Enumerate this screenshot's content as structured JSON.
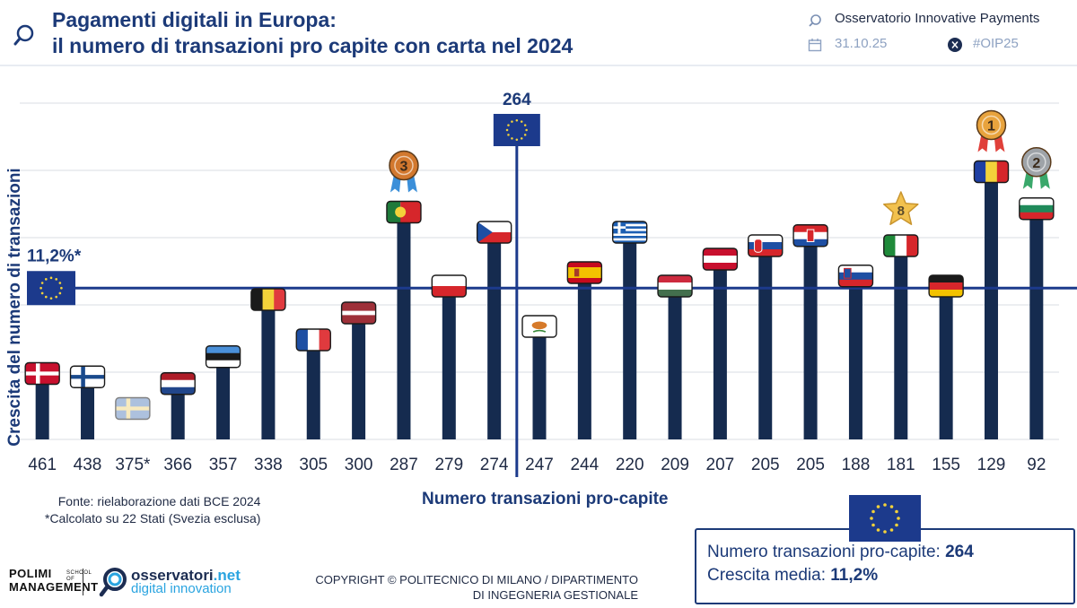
{
  "header": {
    "title_line1": "Pagamenti digitali in Europa:",
    "title_line2": "il numero di transazioni pro capite con carta nel 2024",
    "org": "Osservatorio Innovative Payments",
    "date": "31.10.25",
    "hashtag": "#OIP25"
  },
  "colors": {
    "bar": "#152b4f",
    "accent": "#1c3a8c",
    "gridline": "#d9dde3",
    "flag_blue": "#1c3a8c"
  },
  "chart_data": {
    "type": "bar",
    "title": "Pagamenti digitali in Europa: il numero di transazioni pro capite con carta nel 2024",
    "xlabel": "Numero transazioni pro-capite",
    "ylabel": "Crescita del numero di transazioni",
    "categories": [
      "461",
      "438",
      "375*",
      "366",
      "357",
      "338",
      "305",
      "300",
      "287",
      "279",
      "274",
      "247",
      "244",
      "220",
      "209",
      "207",
      "205",
      "205",
      "188",
      "181",
      "155",
      "129",
      "92"
    ],
    "countries": [
      "Denmark",
      "Finland",
      "Sweden",
      "Netherlands",
      "Estonia",
      "Belgium",
      "France",
      "Latvia",
      "Portugal",
      "Poland",
      "Czech Republic",
      "Cyprus",
      "Spain",
      "Greece",
      "Hungary",
      "Austria",
      "Slovakia",
      "Croatia",
      "Slovenia",
      "Italy",
      "Germany",
      "Romania",
      "Bulgaria"
    ],
    "values": [
      9,
      8.5,
      null,
      7.5,
      11.5,
      20,
      14,
      18,
      33,
      22,
      30,
      16,
      24,
      30,
      22,
      26,
      28,
      29.5,
      23.5,
      28,
      22,
      39,
      33.5
    ],
    "ylim": [
      0,
      50
    ],
    "reference_value_label": "264",
    "reference_growth_label": "11,2%*",
    "reference_growth": 22.5,
    "reference_between_indices": [
      10,
      11
    ],
    "medals": [
      {
        "index": 21,
        "label": "1",
        "color": "#e8a33d"
      },
      {
        "index": 22,
        "label": "2",
        "color": "#9ea3a8"
      },
      {
        "index": 8,
        "label": "3",
        "color": "#d2782e"
      },
      {
        "index": 19,
        "label": "8",
        "color": "#f2c14e"
      }
    ],
    "grid": true
  },
  "notes": {
    "source": "Fonte: rielaborazione dati BCE 2024",
    "footnote": "*Calcolato su 22 Stati (Svezia esclusa)"
  },
  "footer": {
    "copyright_line1": "COPYRIGHT © POLITECNICO DI MILANO / DIPARTIMENTO",
    "copyright_line2": "DI INGEGNERIA GESTIONALE",
    "polimi_line1": "POLIMI",
    "polimi_line2": "MANAGEMENT",
    "polimi_small": "SCHOOL OF",
    "osserv_name": "osservatori",
    "osserv_tld": ".net",
    "osserv_tagline": "digital innovation"
  },
  "infobox": {
    "label1": "Numero transazioni pro-capite: ",
    "value1": "264",
    "label2": "Crescita media: ",
    "value2": "11,2%"
  }
}
